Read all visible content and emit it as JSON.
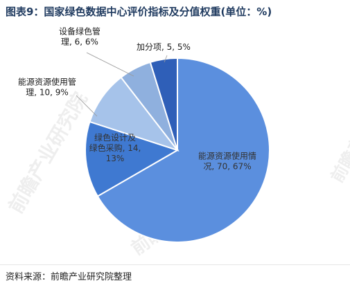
{
  "title": "图表9：国家绿色数据中心评价指标及分值权重(单位：%)",
  "source": "资料来源：前瞻产业研究院整理",
  "watermark": "前瞻产业研究院",
  "colors": {
    "slices": [
      "#5b8fde",
      "#3f79d1",
      "#a6c3ea",
      "#8fb0de",
      "#2f5fb8"
    ],
    "stroke": "#ffffff",
    "label_dark": "#333333",
    "label_light": "#1a1a1a"
  },
  "chart_data": {
    "type": "pie",
    "start_angle_deg": 0,
    "slices": [
      {
        "name": "能源资源使用情况",
        "value": 70,
        "percent": 67,
        "label_lines": [
          "能源资源使用情",
          "况, 70, 67%"
        ]
      },
      {
        "name": "绿色设计及绿色采购",
        "value": 14,
        "percent": 13,
        "label_lines": [
          "绿色设计及",
          "绿色采购, 14,",
          "13%"
        ]
      },
      {
        "name": "能源资源使用管理",
        "value": 10,
        "percent": 9,
        "label_lines": [
          "能源资源使用管",
          "理, 10, 9%"
        ]
      },
      {
        "name": "设备绿色管理",
        "value": 6,
        "percent": 6,
        "label_lines": [
          "设备绿色管",
          "理, 6, 6%"
        ]
      },
      {
        "name": "加分项",
        "value": 5,
        "percent": 5,
        "label_lines": [
          "加分项, 5, 5%"
        ]
      }
    ]
  }
}
